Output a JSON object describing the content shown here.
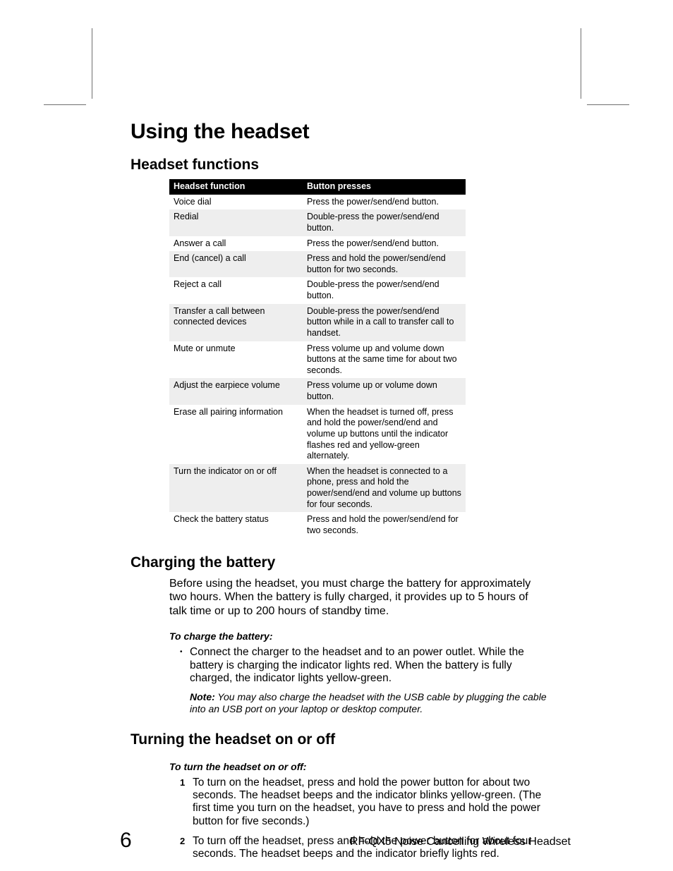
{
  "colors": {
    "background": "#ffffff",
    "text": "#000000",
    "table_header_bg": "#000000",
    "table_header_text": "#ffffff",
    "row_alt_bg": "#eeeeee",
    "crop_mark": "#6f6f6f"
  },
  "typography": {
    "title_size_pt": 30,
    "section_size_pt": 21,
    "body_size_pt": 16,
    "table_size_pt": 12.5,
    "subhead_size_pt": 14,
    "note_size_pt": 14,
    "footer_title_size_pt": 16,
    "page_num_size_pt": 30
  },
  "title": "Using the headset",
  "sections": {
    "functions": {
      "heading": "Headset functions",
      "table": {
        "columns": [
          "Headset function",
          "Button presses"
        ],
        "rows": [
          [
            "Voice dial",
            "Press the power/send/end button."
          ],
          [
            "Redial",
            "Double-press the power/send/end button."
          ],
          [
            "Answer a call",
            "Press the power/send/end button."
          ],
          [
            "End (cancel) a call",
            "Press and hold the power/send/end button for two seconds."
          ],
          [
            "Reject a call",
            "Double-press the power/send/end button."
          ],
          [
            "Transfer a call between connected devices",
            "Double-press the power/send/end button while in a call to transfer call to handset."
          ],
          [
            "Mute or unmute",
            "Press volume up and volume down buttons at the same time for about two seconds."
          ],
          [
            "Adjust the earpiece volume",
            "Press volume up or volume down button."
          ],
          [
            "Erase all pairing information",
            "When the headset is turned off, press and hold the power/send/end and volume up buttons until the indicator flashes red and yellow-green alternately."
          ],
          [
            "Turn the indicator on or off",
            "When the headset is connected to a phone, press and hold the power/send/end and volume up buttons for four seconds."
          ],
          [
            "Check the battery status",
            "Press and hold the power/send/end for two seconds."
          ]
        ]
      }
    },
    "charging": {
      "heading": "Charging the battery",
      "intro": "Before using the headset, you must charge the battery for approximately two hours. When the battery is fully charged, it provides up to 5 hours of talk time or up to 200 hours of standby time.",
      "subhead": "To charge the battery:",
      "bullet": "Connect the charger to the headset and to an power outlet. While the battery is charging the indicator lights red. When the battery is fully charged, the indicator lights yellow-green.",
      "note_label": "Note:",
      "note_text": " You may also charge the headset with the USB cable by plugging the cable into an USB port on your laptop or desktop computer."
    },
    "power": {
      "heading": "Turning the headset on or off",
      "subhead": "To turn the headset on or off:",
      "steps": [
        "To turn on the headset, press and hold the power button for about two seconds. The headset beeps and the indicator blinks yellow-green. (The first time you turn on the headset, you have to press and hold the power button for five seconds.)",
        "To turn off the headset, press and hold the power button for about four seconds. The headset beeps and the indicator briefly lights red."
      ]
    }
  },
  "footer": {
    "page_number": "6",
    "doc_title": "RF-QX5 Noise Cancelling Wireless Headset"
  }
}
